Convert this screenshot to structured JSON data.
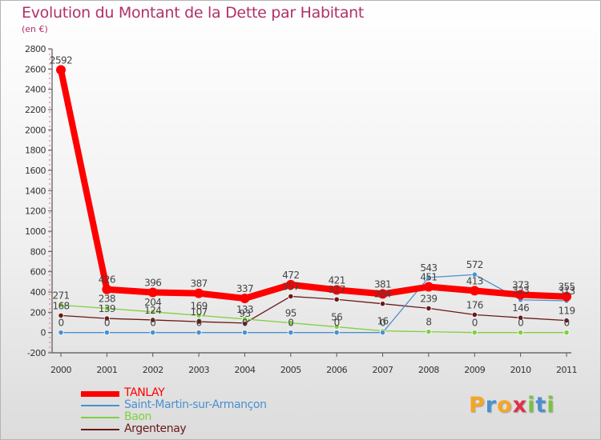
{
  "title": "Evolution du Montant de la Dette par Habitant",
  "subtitle": "(en €)",
  "chart_data": {
    "type": "line",
    "categories": [
      "2000",
      "2001",
      "2002",
      "2003",
      "2004",
      "2005",
      "2006",
      "2007",
      "2008",
      "2009",
      "2010",
      "2011"
    ],
    "ylim": [
      -200,
      2800
    ],
    "yticks": [
      -200,
      0,
      200,
      400,
      600,
      800,
      1000,
      1200,
      1400,
      1600,
      1800,
      2000,
      2200,
      2400,
      2600,
      2800
    ],
    "grid": false,
    "legend_position": "bottom-left",
    "series": [
      {
        "name": "TANLAY",
        "color": "#ff0000",
        "values": [
          2592,
          426,
          396,
          387,
          337,
          472,
          421,
          381,
          451,
          413,
          373,
          355
        ]
      },
      {
        "name": "Saint-Martin-sur-Armançon",
        "color": "#4a90d0",
        "values": [
          0,
          0,
          0,
          0,
          0,
          0,
          0,
          0,
          543,
          572,
          323,
          313
        ]
      },
      {
        "name": "Baon",
        "color": "#80d040",
        "values": [
          271,
          238,
          204,
          169,
          133,
          95,
          56,
          16,
          8,
          0,
          0,
          0
        ]
      },
      {
        "name": "Argentenay",
        "color": "#6a1818",
        "values": [
          168,
          139,
          124,
          107,
          93,
          357,
          327,
          284,
          239,
          176,
          146,
          119
        ]
      }
    ]
  },
  "logo": {
    "letters": [
      "P",
      "r",
      "o",
      "x",
      "i",
      "t",
      "i"
    ],
    "colors": [
      "#f5a623",
      "#4a90d0",
      "#f5a623",
      "#e0304a",
      "#7bc143",
      "#4a90d0",
      "#7bc143"
    ]
  }
}
